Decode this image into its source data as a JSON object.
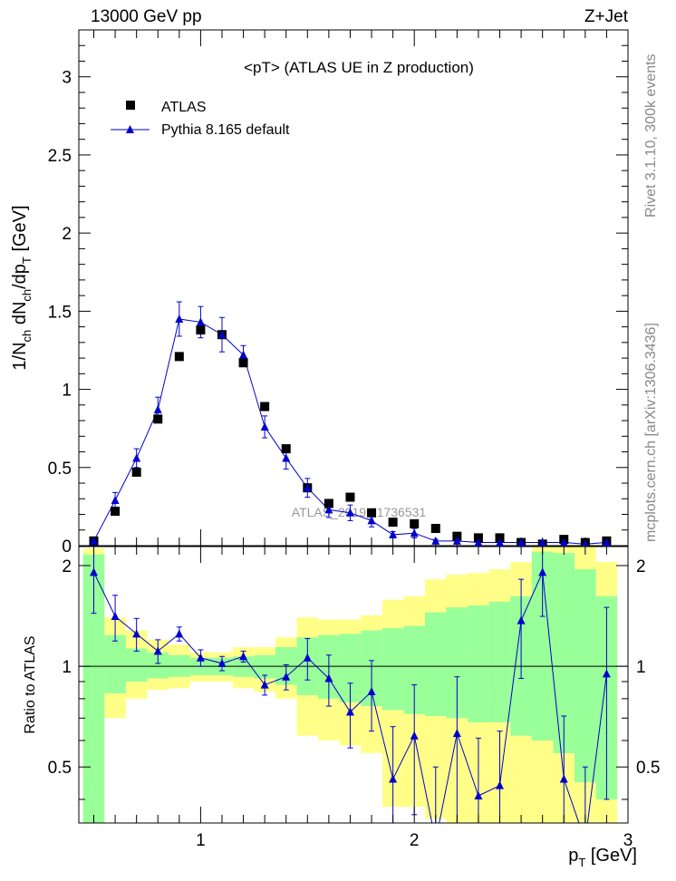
{
  "header": {
    "energy": "13000 GeV pp",
    "process": "Z+Jet"
  },
  "side_labels": {
    "rivet": "Rivet 3.1.10,  300k events",
    "source": "mcplots.cern.ch [arXiv:1306.3436]"
  },
  "colors": {
    "data": "#000000",
    "mc": "#0000cc",
    "band_inner": "#99ff99",
    "band_outer": "#ffff88"
  },
  "chart_data": [
    {
      "type": "scatter",
      "title": "<pT>  (ATLAS UE in Z production)",
      "ylabel_main": "1/N",
      "ylabel_parts": [
        "1/N",
        "ch",
        " dN",
        "ch",
        "/dp",
        "T",
        " [GeV]"
      ],
      "xlim": [
        0.43,
        3.0
      ],
      "ylim": [
        0,
        3.3
      ],
      "y_ticks": [
        0,
        0.5,
        1,
        1.5,
        2,
        2.5,
        3
      ],
      "y_tick_labels": [
        "0",
        "0.5",
        "1",
        "1.5",
        "2",
        "2.5",
        "3"
      ],
      "watermark": "ATLAS_2019_I1736531",
      "legend": {
        "position": "top-left",
        "entries": [
          "ATLAS",
          "Pythia 8.165 default"
        ]
      },
      "series": [
        {
          "name": "ATLAS",
          "marker": "square",
          "x": [
            0.5,
            0.6,
            0.7,
            0.8,
            0.9,
            1.0,
            1.1,
            1.2,
            1.3,
            1.4,
            1.5,
            1.6,
            1.7,
            1.8,
            1.9,
            2.0,
            2.1,
            2.2,
            2.3,
            2.4,
            2.5,
            2.6,
            2.7,
            2.8,
            2.9
          ],
          "y": [
            0.03,
            0.22,
            0.47,
            0.81,
            1.21,
            1.38,
            1.35,
            1.17,
            0.89,
            0.62,
            0.37,
            0.27,
            0.31,
            0.21,
            0.15,
            0.14,
            0.11,
            0.06,
            0.05,
            0.05,
            0.02,
            0.01,
            0.04,
            0.02,
            0.03
          ]
        },
        {
          "name": "Pythia 8.165 default",
          "marker": "triangle",
          "x": [
            0.5,
            0.6,
            0.7,
            0.8,
            0.9,
            1.0,
            1.1,
            1.2,
            1.3,
            1.4,
            1.5,
            1.6,
            1.7,
            1.8,
            1.9,
            2.0,
            2.1,
            2.2,
            2.3,
            2.4,
            2.5,
            2.6,
            2.7,
            2.8,
            2.9
          ],
          "y": [
            0.03,
            0.29,
            0.56,
            0.87,
            1.45,
            1.43,
            1.35,
            1.22,
            0.76,
            0.56,
            0.37,
            0.23,
            0.21,
            0.16,
            0.07,
            0.08,
            0.03,
            0.03,
            0.02,
            0.02,
            0.02,
            0.02,
            0.02,
            0.01,
            0.02
          ],
          "err": [
            0.01,
            0.05,
            0.06,
            0.08,
            0.11,
            0.1,
            0.11,
            0.06,
            0.07,
            0.07,
            0.06,
            0.05,
            0.05,
            0.04,
            0.02,
            0.03,
            0.01,
            0.01,
            0.01,
            0.01,
            0.01,
            0.01,
            0.01,
            0.01,
            0.01
          ]
        }
      ]
    },
    {
      "type": "line",
      "ylabel": "Ratio to ATLAS",
      "xlabel_parts": [
        "p",
        "T",
        " [GeV]"
      ],
      "xlim": [
        0.43,
        3.0
      ],
      "ylim": [
        0.34,
        2.28
      ],
      "x_ticks": [
        1,
        2,
        3
      ],
      "x_tick_labels": [
        "1",
        "2",
        "3"
      ],
      "y_ticks": [
        0.5,
        1,
        2
      ],
      "y_tick_labels": [
        "0.5",
        "1",
        "2"
      ],
      "reference_line": 1,
      "bins": [
        0.45,
        0.55,
        0.65,
        0.75,
        0.85,
        0.95,
        1.05,
        1.15,
        1.25,
        1.35,
        1.45,
        1.55,
        1.65,
        1.75,
        1.85,
        1.95,
        2.05,
        2.15,
        2.25,
        2.35,
        2.45,
        2.55,
        2.65,
        2.75,
        2.85,
        2.95
      ],
      "band_inner": {
        "low": [
          0.3,
          0.83,
          0.9,
          0.92,
          0.93,
          0.94,
          0.94,
          0.93,
          0.92,
          0.88,
          0.82,
          0.8,
          0.78,
          0.76,
          0.74,
          0.72,
          0.71,
          0.7,
          0.68,
          0.68,
          0.62,
          0.6,
          0.55,
          0.45,
          0.4
        ],
        "high": [
          2.16,
          1.24,
          1.13,
          1.1,
          1.08,
          1.06,
          1.06,
          1.07,
          1.08,
          1.14,
          1.22,
          1.24,
          1.25,
          1.28,
          1.3,
          1.32,
          1.45,
          1.5,
          1.52,
          1.56,
          1.62,
          2.2,
          2.18,
          1.95,
          1.62
        ]
      },
      "band_outer": {
        "low": [
          0.3,
          0.7,
          0.8,
          0.85,
          0.86,
          0.9,
          0.9,
          0.86,
          0.84,
          0.8,
          0.62,
          0.6,
          0.58,
          0.55,
          0.38,
          0.38,
          0.35,
          0.34,
          0.34,
          0.34,
          0.34,
          0.34,
          0.34,
          0.34,
          0.34
        ],
        "high": [
          2.25,
          1.4,
          1.28,
          1.2,
          1.16,
          1.1,
          1.1,
          1.14,
          1.14,
          1.22,
          1.4,
          1.38,
          1.38,
          1.42,
          1.58,
          1.62,
          1.82,
          1.88,
          1.9,
          1.95,
          2.05,
          2.28,
          2.28,
          2.28,
          2.05
        ]
      },
      "series": [
        {
          "name": "Pythia 8.165 default",
          "x": [
            0.5,
            0.6,
            0.7,
            0.8,
            0.9,
            1.0,
            1.1,
            1.2,
            1.3,
            1.4,
            1.5,
            1.6,
            1.7,
            1.8,
            1.9,
            2.0,
            2.1,
            2.2,
            2.3,
            2.4,
            2.5,
            2.6,
            2.7,
            2.8,
            2.9
          ],
          "y": [
            1.91,
            1.41,
            1.25,
            1.11,
            1.25,
            1.06,
            1.02,
            1.07,
            0.88,
            0.93,
            1.06,
            0.92,
            0.73,
            0.84,
            0.46,
            0.62,
            0.3,
            0.63,
            0.41,
            0.44,
            1.37,
            1.91,
            0.46,
            0.3,
            0.95
          ],
          "err_low": [
            0.47,
            0.22,
            0.14,
            0.09,
            0.06,
            0.06,
            0.05,
            0.04,
            0.06,
            0.08,
            0.15,
            0.16,
            0.16,
            0.2,
            0.2,
            0.26,
            0.2,
            0.3,
            0.2,
            0.2,
            0.45,
            0.5,
            0.25,
            0.2,
            0.55
          ],
          "err_high": [
            0.47,
            0.22,
            0.14,
            0.09,
            0.06,
            0.06,
            0.05,
            0.04,
            0.06,
            0.08,
            0.15,
            0.16,
            0.16,
            0.2,
            0.2,
            0.26,
            0.2,
            0.3,
            0.2,
            0.2,
            0.45,
            0.5,
            0.25,
            0.2,
            0.55
          ]
        }
      ]
    }
  ]
}
